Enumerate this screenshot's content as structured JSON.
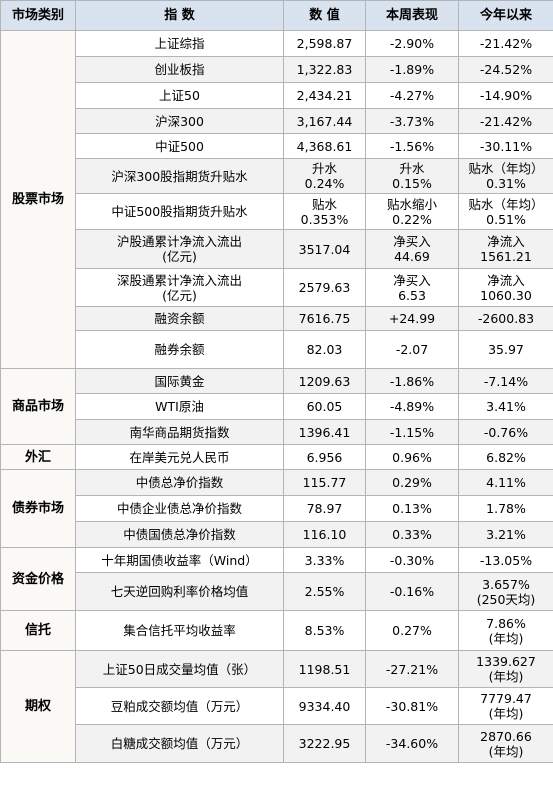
{
  "table": {
    "header": [
      "市场类别",
      "指 数",
      "数 值",
      "本周表现",
      "今年以来"
    ],
    "groups": [
      {
        "category": "股票市场",
        "rows": [
          [
            "上证综指",
            "2,598.87",
            "-2.90%",
            "-21.42%"
          ],
          [
            "创业板指",
            "1,322.83",
            "-1.89%",
            "-24.52%"
          ],
          [
            "上证50",
            "2,434.21",
            "-4.27%",
            "-14.90%"
          ],
          [
            "沪深300",
            "3,167.44",
            "-3.73%",
            "-21.42%"
          ],
          [
            "中证500",
            "4,368.61",
            "-1.56%",
            "-30.11%"
          ],
          [
            "沪深300股指期货升贴水",
            "升水\n0.24%",
            "升水\n0.15%",
            "贴水（年均）\n0.31%"
          ],
          [
            "中证500股指期货升贴水",
            "贴水\n0.353%",
            "贴水缩小\n0.22%",
            "贴水（年均）\n0.51%"
          ],
          [
            "沪股通累计净流入流出\n(亿元)",
            "3517.04",
            "净买入\n44.69",
            "净流入\n1561.21"
          ],
          [
            "深股通累计净流入流出\n(亿元)",
            "2579.63",
            "净买入\n6.53",
            "净流入\n1060.30"
          ],
          [
            "融资余额",
            "7616.75",
            "+24.99",
            "-2600.83"
          ],
          [
            "融券余额",
            "82.03",
            "-2.07",
            "35.97"
          ]
        ]
      },
      {
        "category": "商品市场",
        "rows": [
          [
            "国际黄金",
            "1209.63",
            "-1.86%",
            "-7.14%"
          ],
          [
            "WTI原油",
            "60.05",
            "-4.89%",
            "3.41%"
          ],
          [
            "南华商品期货指数",
            "1396.41",
            "-1.15%",
            "-0.76%"
          ]
        ]
      },
      {
        "category": "外汇",
        "rows": [
          [
            "在岸美元兑人民币",
            "6.956",
            "0.96%",
            "6.82%"
          ]
        ]
      },
      {
        "category": "债券市场",
        "rows": [
          [
            "中债总净价指数",
            "115.77",
            "0.29%",
            "4.11%"
          ],
          [
            "中债企业债总净价指数",
            "78.97",
            "0.13%",
            "1.78%"
          ],
          [
            "中债国债总净价指数",
            "116.10",
            "0.33%",
            "3.21%"
          ]
        ]
      },
      {
        "category": "资金价格",
        "rows": [
          [
            "十年期国债收益率（Wind）",
            "3.33%",
            "-0.30%",
            "-13.05%"
          ],
          [
            "七天逆回购利率价格均值",
            "2.55%",
            "-0.16%",
            "3.657%\n(250天均)"
          ]
        ]
      },
      {
        "category": "信托",
        "rows": [
          [
            "集合信托平均收益率",
            "8.53%",
            "0.27%",
            "7.86%\n(年均)"
          ]
        ]
      },
      {
        "category": "期权",
        "rows": [
          [
            "上证50日成交量均值（张）",
            "1198.51",
            "-27.21%",
            "1339.627\n(年均)"
          ],
          [
            "豆粕成交额均值（万元）",
            "9334.40",
            "-30.81%",
            "7779.47\n(年均)"
          ],
          [
            "白糖成交额均值（万元）",
            "3222.95",
            "-34.60%",
            "2870.66\n(年均)"
          ]
        ]
      }
    ]
  }
}
